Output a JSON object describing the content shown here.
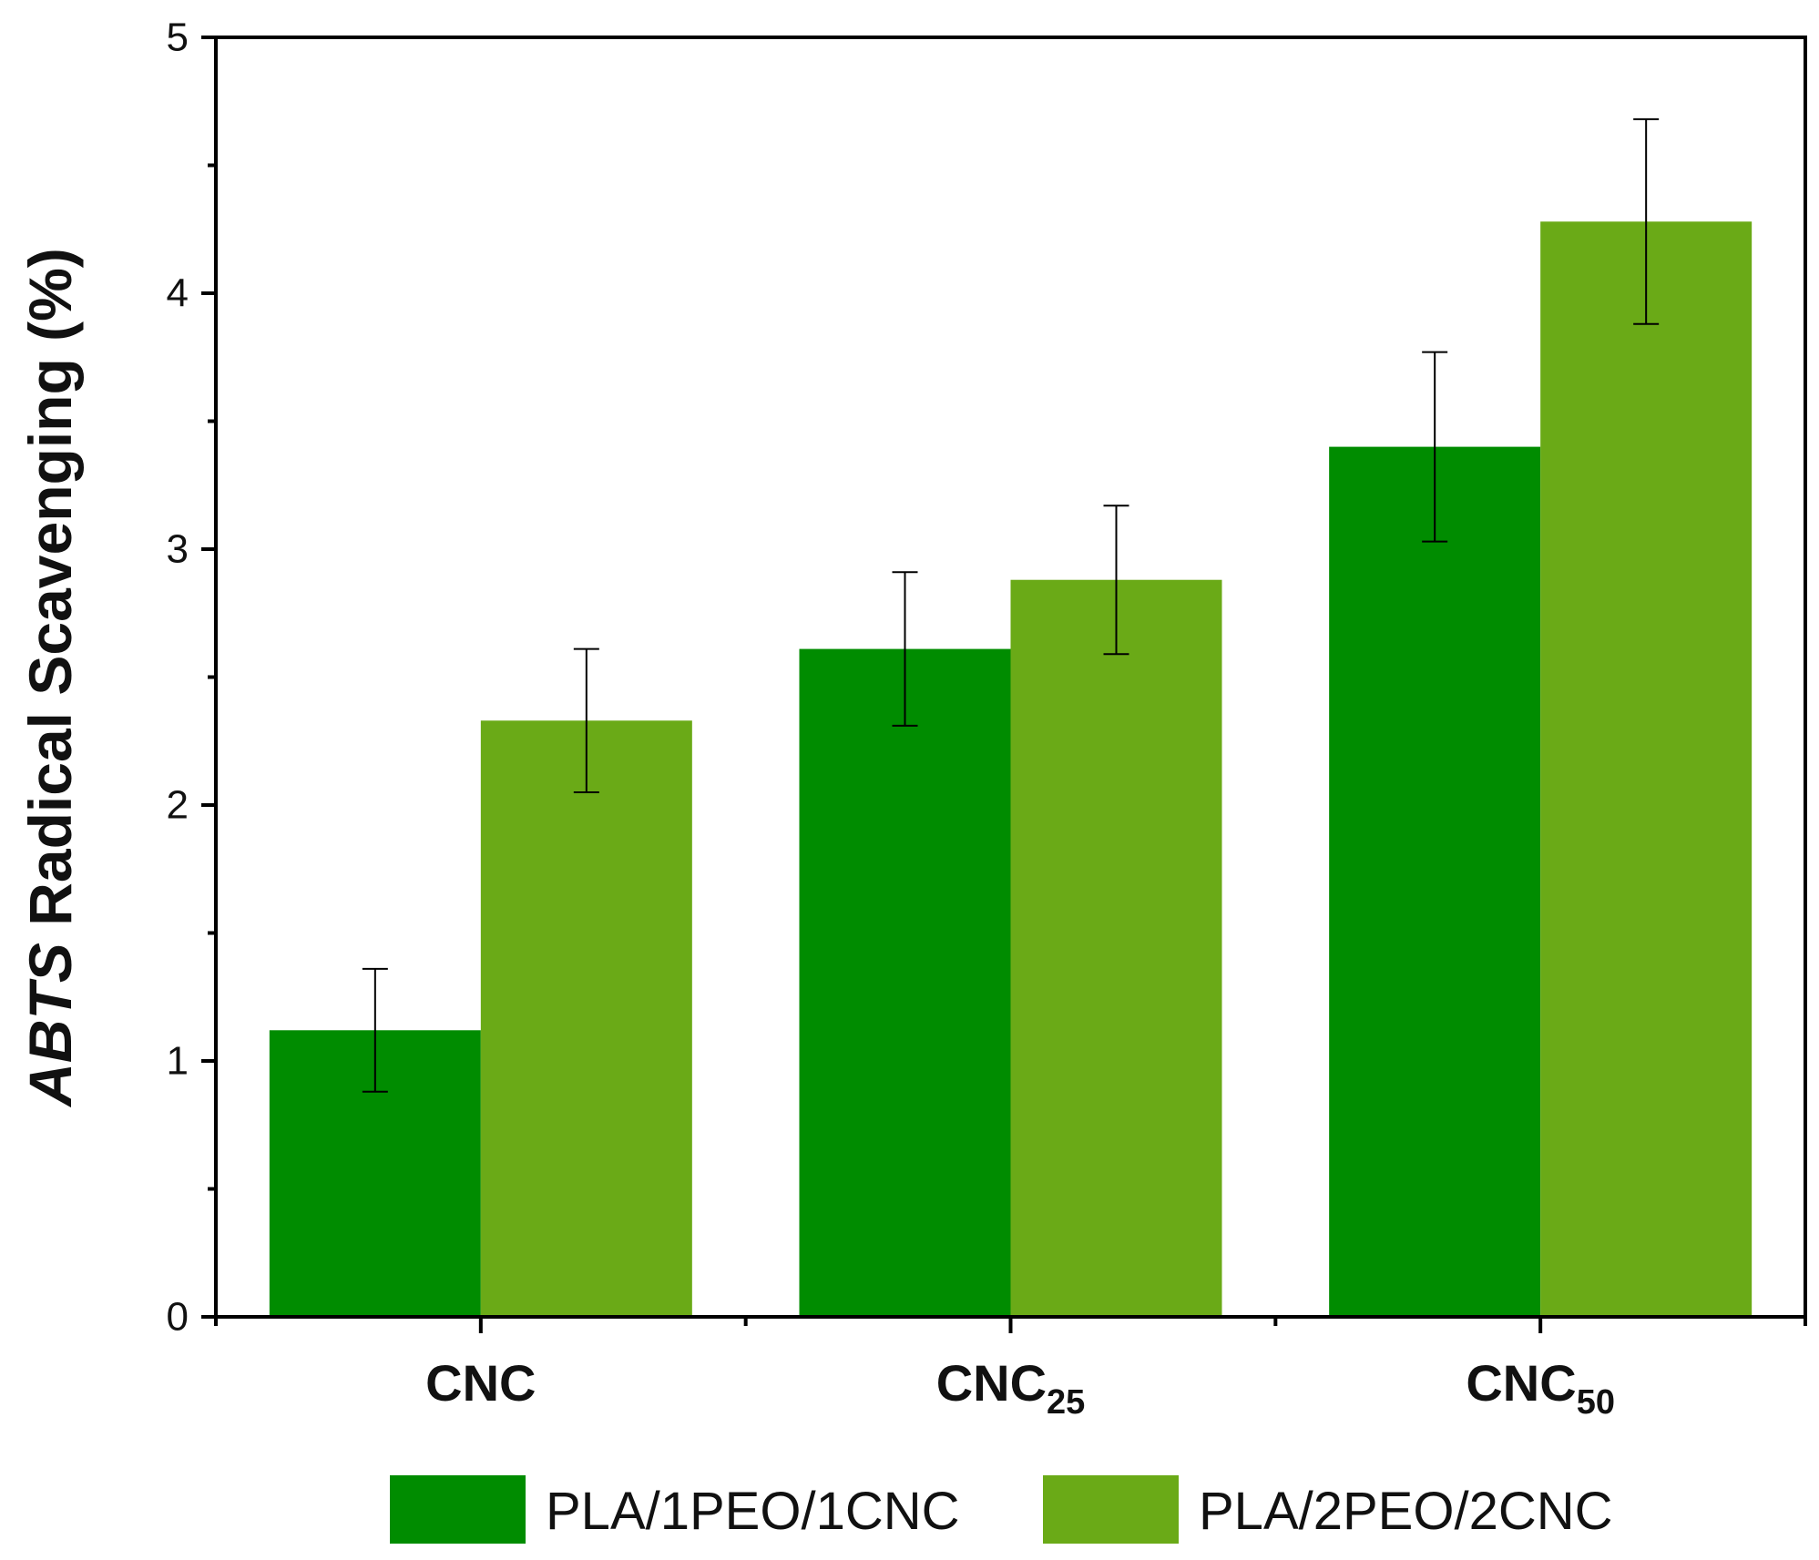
{
  "chart_data": {
    "type": "bar",
    "categories": [
      {
        "base": "CNC",
        "sub": ""
      },
      {
        "base": "CNC",
        "sub": "25"
      },
      {
        "base": "CNC",
        "sub": "50"
      }
    ],
    "series": [
      {
        "name": "PLA/1PEO/1CNC",
        "color": "#008c00",
        "values": [
          1.12,
          2.61,
          3.4
        ],
        "errors": [
          0.24,
          0.3,
          0.37
        ]
      },
      {
        "name": "PLA/2PEO/2CNC",
        "color": "#6aaa17",
        "values": [
          2.33,
          2.88,
          4.28
        ],
        "errors": [
          0.28,
          0.29,
          0.4
        ]
      }
    ],
    "ylabel": {
      "italic": "ABTS",
      "rest": " Radical Scavenging (%)"
    },
    "xlabel": "",
    "ylim": [
      0,
      5
    ],
    "yticks": [
      "0",
      "1",
      "2",
      "3",
      "4",
      "5"
    ],
    "y_minor_step": 0.5,
    "grid": false,
    "legend_position": "bottom"
  }
}
